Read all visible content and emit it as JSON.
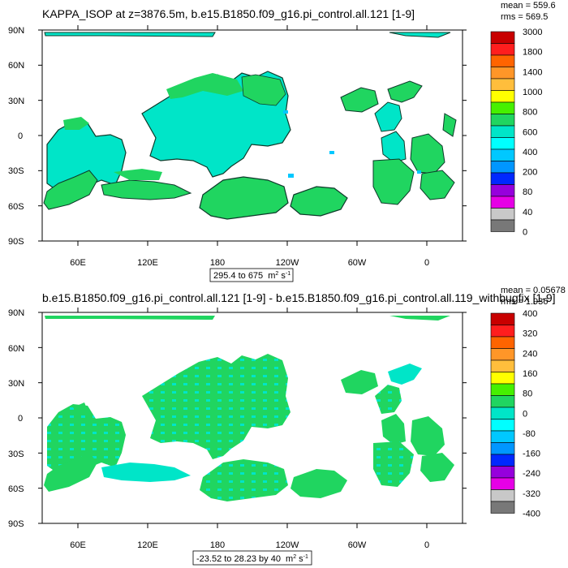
{
  "chart_data": [
    {
      "type": "map",
      "title": "KAPPA_ISOP at z=3876.5m, b.e15.B1850.f09_g16.pi_control.all.121 [1-9]",
      "stats": {
        "mean_label": "mean = 559.6",
        "rms_label": "rms = 569.5"
      },
      "range_label": "295.4 to 675",
      "units_label": "m",
      "units_exp1": "2",
      "units_mid": " s",
      "units_exp2": "-1",
      "lat_labels": [
        "90N",
        "60N",
        "30N",
        "0",
        "30S",
        "60S",
        "90S"
      ],
      "lon_labels": [
        "60E",
        "120E",
        "180",
        "120W",
        "60W",
        "0"
      ],
      "colorbar": {
        "labels": [
          "3000",
          "1800",
          "1400",
          "1000",
          "800",
          "600",
          "400",
          "200",
          "80",
          "40",
          "0"
        ],
        "colors": [
          "#c80000",
          "#ff1e1e",
          "#ff6400",
          "#ff9628",
          "#ffbe3c",
          "#ffff00",
          "#46f000",
          "#20d560",
          "#00e5c8",
          "#00ffff",
          "#00c8ff",
          "#0096ff",
          "#0028ff",
          "#9600dc",
          "#e600e6",
          "#c8c8c8",
          "#787878"
        ]
      }
    },
    {
      "type": "map",
      "title": "b.e15.B1850.f09_g16.pi_control.all.121 [1-9] - b.e15.B1850.f09_g16.pi_control.all.119_withbugfix [1-9]",
      "stats": {
        "mean_label": "mean = 0.05678",
        "rms_label": "rms = 1.936"
      },
      "range_label": "-23.52 to 28.23 by 40",
      "units_label": "m",
      "units_exp1": "2",
      "units_mid": " s",
      "units_exp2": "-1",
      "lat_labels": [
        "90N",
        "60N",
        "30N",
        "0",
        "30S",
        "60S",
        "90S"
      ],
      "lon_labels": [
        "60E",
        "120E",
        "180",
        "120W",
        "60W",
        "0"
      ],
      "colorbar": {
        "labels": [
          "400",
          "320",
          "240",
          "160",
          "80",
          "0",
          "-80",
          "-160",
          "-240",
          "-320",
          "-400"
        ],
        "colors": [
          "#c80000",
          "#ff1e1e",
          "#ff6400",
          "#ff9628",
          "#ffbe3c",
          "#ffff00",
          "#46f000",
          "#20d560",
          "#00e5c8",
          "#00ffff",
          "#00c8ff",
          "#0096ff",
          "#0028ff",
          "#9600dc",
          "#e600e6",
          "#c8c8c8",
          "#787878"
        ]
      }
    }
  ]
}
